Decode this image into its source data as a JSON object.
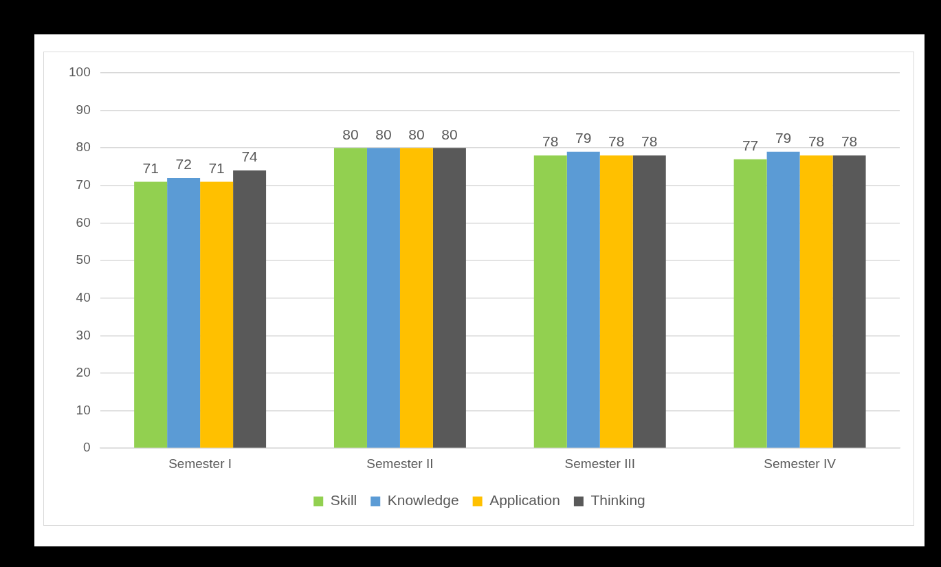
{
  "chart_data": {
    "type": "bar",
    "categories": [
      "Semester I",
      "Semester II",
      "Semester III",
      "Semester IV"
    ],
    "series": [
      {
        "name": "Skill",
        "color": "#92d050",
        "values": [
          71,
          80,
          78,
          77
        ]
      },
      {
        "name": "Knowledge",
        "color": "#5b9bd5",
        "values": [
          72,
          80,
          79,
          79
        ]
      },
      {
        "name": "Application",
        "color": "#ffc000",
        "values": [
          71,
          80,
          78,
          78
        ]
      },
      {
        "name": "Thinking",
        "color": "#595959",
        "values": [
          74,
          80,
          78,
          78
        ]
      }
    ],
    "ylim": [
      0,
      100
    ],
    "yticks": [
      0,
      10,
      20,
      30,
      40,
      50,
      60,
      70,
      80,
      90,
      100
    ],
    "grid": "y",
    "legend": "bottom",
    "data_labels": true
  }
}
